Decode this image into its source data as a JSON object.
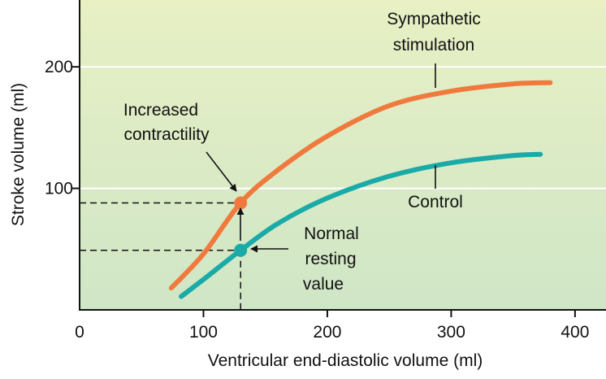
{
  "chart_data": {
    "type": "line",
    "xlabel": "Ventricular end-diastolic volume (ml)",
    "ylabel": "Stroke volume (ml)",
    "xlim": [
      0,
      425
    ],
    "ylim": [
      0,
      255
    ],
    "x_ticks": [
      0,
      100,
      200,
      300,
      400
    ],
    "x_tick_labels": [
      "0",
      "100",
      "200",
      "300",
      "400"
    ],
    "y_ticks": [
      100,
      200
    ],
    "y_tick_labels": [
      "100",
      "200"
    ],
    "grid": "horizontal",
    "background": {
      "top": "#e8f0c4",
      "bottom": "#cfe6c6"
    },
    "series": [
      {
        "name": "Sympathetic stimulation",
        "color": "#f07a3e",
        "points": [
          [
            74,
            18
          ],
          [
            100,
            46
          ],
          [
            130,
            88
          ],
          [
            160,
            115
          ],
          [
            200,
            143
          ],
          [
            250,
            168
          ],
          [
            300,
            180
          ],
          [
            350,
            186
          ],
          [
            380,
            187
          ]
        ]
      },
      {
        "name": "Control",
        "color": "#1aaaa8",
        "points": [
          [
            82,
            11
          ],
          [
            100,
            25
          ],
          [
            130,
            49
          ],
          [
            160,
            71
          ],
          [
            200,
            92
          ],
          [
            250,
            110
          ],
          [
            300,
            121
          ],
          [
            350,
            127
          ],
          [
            372,
            128
          ]
        ]
      }
    ],
    "markers": [
      {
        "x": 130,
        "y": 88,
        "color": "#f07a3e"
      },
      {
        "x": 130,
        "y": 49,
        "color": "#1aaaa8"
      }
    ],
    "annotations": {
      "sympathetic": [
        "Sympathetic",
        "stimulation"
      ],
      "control": [
        "Control"
      ],
      "increased": [
        "Increased",
        "contractility"
      ],
      "normal": [
        "Normal",
        "resting",
        "value"
      ]
    }
  }
}
